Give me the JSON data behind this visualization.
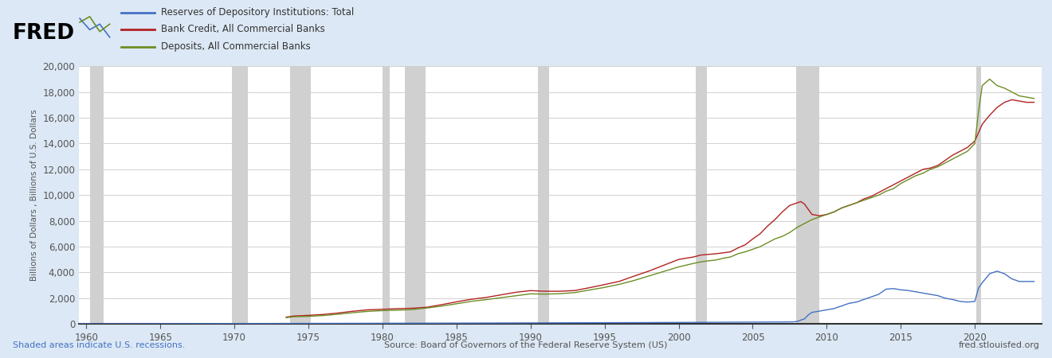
{
  "background_color": "#dce8f5",
  "plot_background_color": "#ffffff",
  "ylabel": "Billions of Dollars , Billions of U.S. Dollars",
  "ylim": [
    0,
    20000
  ],
  "yticks": [
    0,
    2000,
    4000,
    6000,
    8000,
    10000,
    12000,
    14000,
    16000,
    18000,
    20000
  ],
  "xlim": [
    1959.5,
    2024.5
  ],
  "xticks": [
    1960,
    1965,
    1970,
    1975,
    1980,
    1985,
    1990,
    1995,
    2000,
    2005,
    2010,
    2015,
    2020
  ],
  "legend_items": [
    {
      "label": "Reserves of Depository Institutions: Total",
      "color": "#4472c4"
    },
    {
      "label": "Bank Credit, All Commercial Banks",
      "color": "#b22222"
    },
    {
      "label": "Deposits, All Commercial Banks",
      "color": "#6b8e23"
    }
  ],
  "recession_bands": [
    [
      1960.25,
      1961.17
    ],
    [
      1969.83,
      1970.92
    ],
    [
      1973.75,
      1975.17
    ],
    [
      1980.0,
      1980.5
    ],
    [
      1981.5,
      1982.92
    ],
    [
      1990.5,
      1991.25
    ],
    [
      2001.17,
      2001.92
    ],
    [
      2007.92,
      2009.5
    ],
    [
      2020.08,
      2020.42
    ]
  ],
  "footer_left": "Shaded areas indicate U.S. recessions.",
  "footer_center": "Source: Board of Governors of the Federal Reserve System (US)",
  "footer_right": "fred.stlouisfed.org",
  "line_colors": {
    "reserves": "#4472c4",
    "bank_credit": "#b22222",
    "deposits": "#6b8e23"
  },
  "years_reserves": [
    1959,
    1960,
    1961,
    1962,
    1963,
    1964,
    1965,
    1966,
    1967,
    1968,
    1969,
    1970,
    1971,
    1972,
    1973,
    1974,
    1975,
    1976,
    1977,
    1978,
    1979,
    1980,
    1981,
    1982,
    1983,
    1984,
    1985,
    1986,
    1987,
    1988,
    1989,
    1990,
    1991,
    1992,
    1993,
    1994,
    1995,
    1996,
    1997,
    1998,
    1999,
    2000,
    2001,
    2002,
    2003,
    2004,
    2005,
    2006,
    2007,
    2007.75,
    2008.0,
    2008.5,
    2008.75,
    2009.0,
    2009.5,
    2010,
    2010.5,
    2011,
    2011.5,
    2012,
    2012.5,
    2013,
    2013.5,
    2014,
    2014.5,
    2015,
    2015.5,
    2016,
    2016.5,
    2017,
    2017.5,
    2018,
    2018.5,
    2019,
    2019.5,
    2020.0,
    2020.25,
    2020.5,
    2021,
    2021.5,
    2022,
    2022.5,
    2023,
    2023.5,
    2024
  ],
  "reserves_vals": [
    18,
    17,
    17,
    18,
    19,
    21,
    23,
    24,
    27,
    30,
    32,
    35,
    36,
    38,
    40,
    42,
    43,
    45,
    47,
    50,
    52,
    55,
    57,
    60,
    62,
    64,
    67,
    70,
    73,
    76,
    79,
    83,
    86,
    90,
    94,
    98,
    100,
    103,
    106,
    110,
    115,
    120,
    125,
    130,
    135,
    140,
    145,
    150,
    155,
    165,
    200,
    400,
    700,
    900,
    1000,
    1100,
    1200,
    1400,
    1600,
    1700,
    1900,
    2100,
    2300,
    2700,
    2750,
    2650,
    2600,
    2500,
    2400,
    2300,
    2200,
    2000,
    1900,
    1750,
    1700,
    1750,
    2800,
    3200,
    3900,
    4100,
    3900,
    3500,
    3300,
    3300,
    3300
  ],
  "years_credit": [
    1973.5,
    1974,
    1975,
    1976,
    1977,
    1978,
    1979,
    1980,
    1981,
    1982,
    1983,
    1984,
    1985,
    1986,
    1987,
    1988,
    1989,
    1990,
    1991,
    1992,
    1993,
    1994,
    1995,
    1996,
    1997,
    1998,
    1999,
    2000,
    2001,
    2001.5,
    2002,
    2002.5,
    2003,
    2003.5,
    2004,
    2004.5,
    2005,
    2005.5,
    2006,
    2006.5,
    2007,
    2007.5,
    2008.0,
    2008.25,
    2008.5,
    2008.75,
    2009.0,
    2009.5,
    2010,
    2010.5,
    2011,
    2011.5,
    2012,
    2012.5,
    2013,
    2013.5,
    2014,
    2014.5,
    2015,
    2015.5,
    2016,
    2016.5,
    2017,
    2017.5,
    2018,
    2018.5,
    2019,
    2019.5,
    2020,
    2020.5,
    2021,
    2021.5,
    2022,
    2022.5,
    2023,
    2023.5,
    2024
  ],
  "credit_vals": [
    530,
    620,
    670,
    740,
    850,
    990,
    1100,
    1140,
    1190,
    1220,
    1300,
    1500,
    1720,
    1920,
    2060,
    2260,
    2460,
    2590,
    2540,
    2540,
    2600,
    2820,
    3060,
    3310,
    3720,
    4110,
    4560,
    5010,
    5200,
    5350,
    5400,
    5450,
    5520,
    5600,
    5900,
    6150,
    6600,
    7000,
    7600,
    8100,
    8700,
    9200,
    9400,
    9500,
    9300,
    8900,
    8500,
    8400,
    8500,
    8700,
    9000,
    9200,
    9400,
    9700,
    9900,
    10200,
    10500,
    10800,
    11100,
    11400,
    11700,
    12000,
    12100,
    12300,
    12700,
    13100,
    13400,
    13700,
    14200,
    15500,
    16200,
    16800,
    17200,
    17400,
    17300,
    17200,
    17200
  ],
  "years_deposits": [
    1973.5,
    1974,
    1975,
    1976,
    1977,
    1978,
    1979,
    1980,
    1981,
    1982,
    1983,
    1984,
    1985,
    1986,
    1987,
    1988,
    1989,
    1990,
    1991,
    1992,
    1993,
    1994,
    1995,
    1996,
    1997,
    1998,
    1999,
    2000,
    2001,
    2001.5,
    2002,
    2002.5,
    2003,
    2003.5,
    2004,
    2004.5,
    2005,
    2005.5,
    2006,
    2006.5,
    2007,
    2007.5,
    2008.0,
    2008.5,
    2009.0,
    2009.5,
    2010,
    2010.5,
    2011,
    2011.5,
    2012,
    2012.5,
    2013,
    2013.5,
    2014,
    2014.5,
    2015,
    2015.5,
    2016,
    2016.5,
    2017,
    2017.5,
    2018,
    2018.5,
    2019,
    2019.5,
    2020.0,
    2020.25,
    2020.5,
    2021,
    2021.5,
    2022,
    2022.5,
    2023,
    2023.5,
    2024
  ],
  "deposits_vals": [
    490,
    560,
    590,
    660,
    760,
    880,
    980,
    1040,
    1070,
    1120,
    1240,
    1390,
    1570,
    1760,
    1890,
    2040,
    2190,
    2340,
    2320,
    2350,
    2440,
    2640,
    2840,
    3080,
    3380,
    3730,
    4080,
    4430,
    4700,
    4820,
    4900,
    4960,
    5100,
    5200,
    5450,
    5600,
    5800,
    6000,
    6300,
    6600,
    6800,
    7100,
    7500,
    7800,
    8100,
    8300,
    8500,
    8700,
    9000,
    9200,
    9400,
    9600,
    9800,
    10000,
    10300,
    10500,
    10900,
    11200,
    11500,
    11700,
    12000,
    12200,
    12500,
    12800,
    13100,
    13400,
    14000,
    16500,
    18500,
    19000,
    18500,
    18300,
    18000,
    17700,
    17600,
    17500
  ]
}
